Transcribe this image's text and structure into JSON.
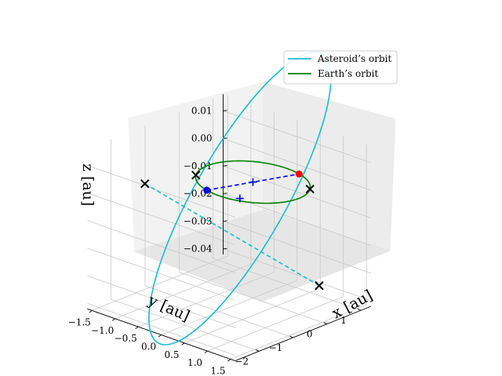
{
  "chart_data": {
    "type": "line",
    "projection": "3d",
    "title": "",
    "xlabel": "x [au]",
    "ylabel": "y [au]",
    "zlabel": "z [au]",
    "x_ticks": [
      "−1.5",
      "−1.0",
      "−0.5",
      "0.0",
      "0.5",
      "1.0",
      "1.5"
    ],
    "y_ticks": [
      "1",
      "0",
      "−1",
      "−2"
    ],
    "z_ticks": [
      "0.01",
      "0.00",
      "−0.01",
      "−0.02",
      "−0.03",
      "−0.04"
    ],
    "xlim": [
      -1.6,
      1.6
    ],
    "ylim": [
      -2.7,
      1.3
    ],
    "zlim": [
      -0.042,
      0.016
    ],
    "grid": true,
    "legend": {
      "position": "top-right",
      "entries": [
        {
          "label": "Asteroid’s orbit",
          "color": "#17becf"
        },
        {
          "label": "Earth’s orbit",
          "color": "#008000"
        }
      ]
    },
    "series": [
      {
        "name": "Asteroid’s orbit",
        "kind": "orbit",
        "color": "#17becf",
        "a": 1.63,
        "b": 1.58,
        "cx": 0.32,
        "cy": -0.82,
        "theta_deg": -33,
        "z_amp": 0.05
      },
      {
        "name": "Earth’s orbit",
        "kind": "orbit",
        "color": "#008000",
        "a": 1.0,
        "b": 1.0,
        "cx": 0.0,
        "cy": 0.0,
        "theta_deg": 0,
        "z_amp": 0.0
      }
    ],
    "markers": [
      {
        "type": "point",
        "color": "#ff0000",
        "x": 0.3,
        "y": 0.95,
        "z": 0.0
      },
      {
        "type": "point",
        "color": "#0000ff",
        "x": -0.3,
        "y": -0.95,
        "z": 0.0
      },
      {
        "type": "plus",
        "color": "#0000ff",
        "x": 0.0,
        "y": 0.0,
        "z": 0.0
      },
      {
        "type": "plus",
        "color": "#0000ff",
        "x": 0.32,
        "y": -0.82,
        "z": 0.0
      },
      {
        "type": "cross",
        "color": "#000000",
        "x": -1.2,
        "y": -1.55,
        "z": 0.0
      },
      {
        "type": "cross",
        "color": "#000000",
        "x": 0.86,
        "y": 0.51,
        "z": 0.0
      },
      {
        "type": "cross",
        "color": "#000000",
        "x": -0.86,
        "y": -0.51,
        "z": 0.0
      },
      {
        "type": "cross",
        "color": "#000000",
        "x": 1.36,
        "y": 0.1,
        "z": -0.03
      }
    ],
    "dashed_lines": [
      {
        "color": "#0000ff",
        "from": [
          -0.3,
          -0.95,
          0.0
        ],
        "to": [
          0.3,
          0.95,
          0.0
        ]
      },
      {
        "color": "#17becf",
        "from": [
          -1.2,
          -1.55,
          0.0
        ],
        "to": [
          1.36,
          0.1,
          -0.03
        ]
      }
    ]
  }
}
